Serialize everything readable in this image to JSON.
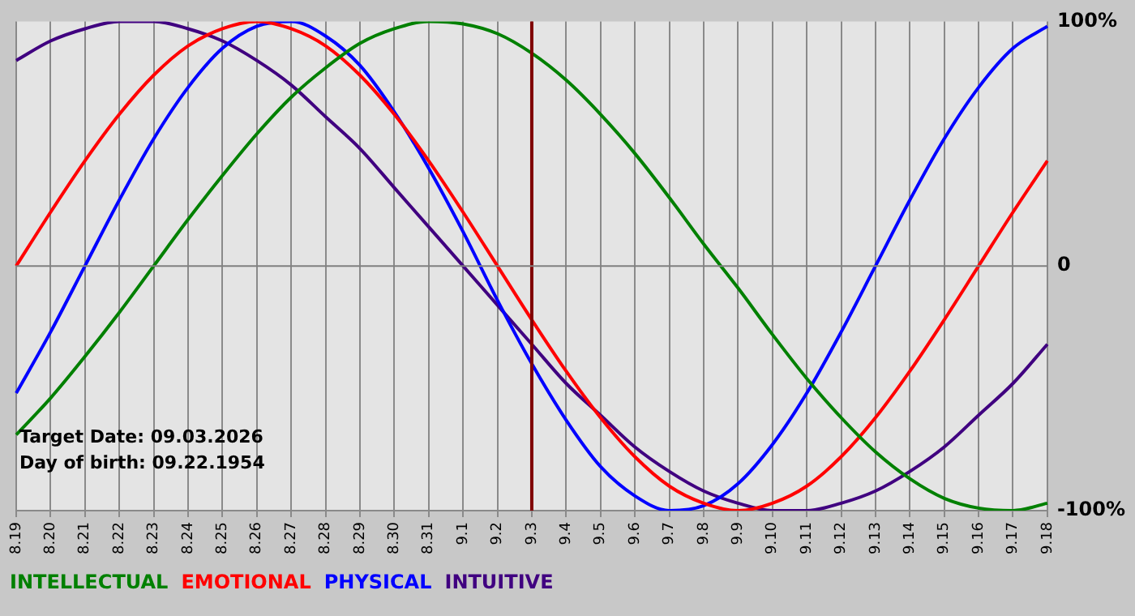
{
  "chart_data": {
    "type": "line",
    "categories": [
      "8.19",
      "8.20",
      "8.21",
      "8.22",
      "8.23",
      "8.24",
      "8.25",
      "8.26",
      "8.27",
      "8.28",
      "8.29",
      "8.30",
      "8.31",
      "9.1",
      "9.2",
      "9.3",
      "9.4",
      "9.5",
      "9.6",
      "9.7",
      "9.8",
      "9.9",
      "9.10",
      "9.11",
      "9.12",
      "9.13",
      "9.14",
      "9.15",
      "9.16",
      "9.17",
      "9.18"
    ],
    "series": [
      {
        "name": "INTELLECTUAL",
        "color": "#008000",
        "values": [
          -69,
          -54,
          -37,
          -19,
          0,
          19,
          37,
          54,
          69,
          81,
          91,
          97,
          100,
          99,
          95,
          87,
          76,
          62,
          46,
          28,
          9,
          -9,
          -28,
          -46,
          -62,
          -76,
          -87,
          -95,
          -99,
          -100,
          -97
        ]
      },
      {
        "name": "EMOTIONAL",
        "color": "#ff0000",
        "values": [
          0,
          22,
          43,
          62,
          78,
          90,
          97,
          100,
          97,
          90,
          78,
          62,
          43,
          22,
          0,
          -22,
          -43,
          -62,
          -78,
          -90,
          -97,
          -100,
          -97,
          -90,
          -78,
          -62,
          -43,
          -22,
          0,
          22,
          43
        ]
      },
      {
        "name": "PHYSICAL",
        "color": "#0000ff",
        "values": [
          -52,
          -27,
          0,
          27,
          52,
          73,
          89,
          98,
          100,
          94,
          82,
          63,
          40,
          14,
          -14,
          -40,
          -63,
          -82,
          -94,
          -100,
          -98,
          -89,
          -73,
          -52,
          -27,
          0,
          27,
          52,
          73,
          89,
          98
        ]
      },
      {
        "name": "INTUITIVE",
        "color": "#400080",
        "values": [
          84,
          92,
          97,
          100,
          100,
          97,
          92,
          84,
          74,
          61,
          48,
          32,
          16,
          0,
          -16,
          -32,
          -48,
          -61,
          -74,
          -84,
          -92,
          -97,
          -100,
          -100,
          -97,
          -92,
          -84,
          -74,
          -61,
          -48,
          -32
        ]
      }
    ],
    "ylim": [
      -100,
      100
    ],
    "yticks": [
      {
        "value": 100,
        "label": "100%"
      },
      0,
      {
        "value": -100,
        "label": "-100%"
      }
    ],
    "grid": "x",
    "legend": "bottom",
    "marker": "none",
    "line_style": "solid",
    "ref_lines": [
      {
        "axis": "x",
        "value": "9.3",
        "color": "#800000"
      },
      {
        "axis": "y",
        "value": 0,
        "color": "#808080"
      }
    ],
    "annotations": [
      "Target Date: 09.03.2026",
      "Day of birth: 09.22.1954"
    ]
  }
}
